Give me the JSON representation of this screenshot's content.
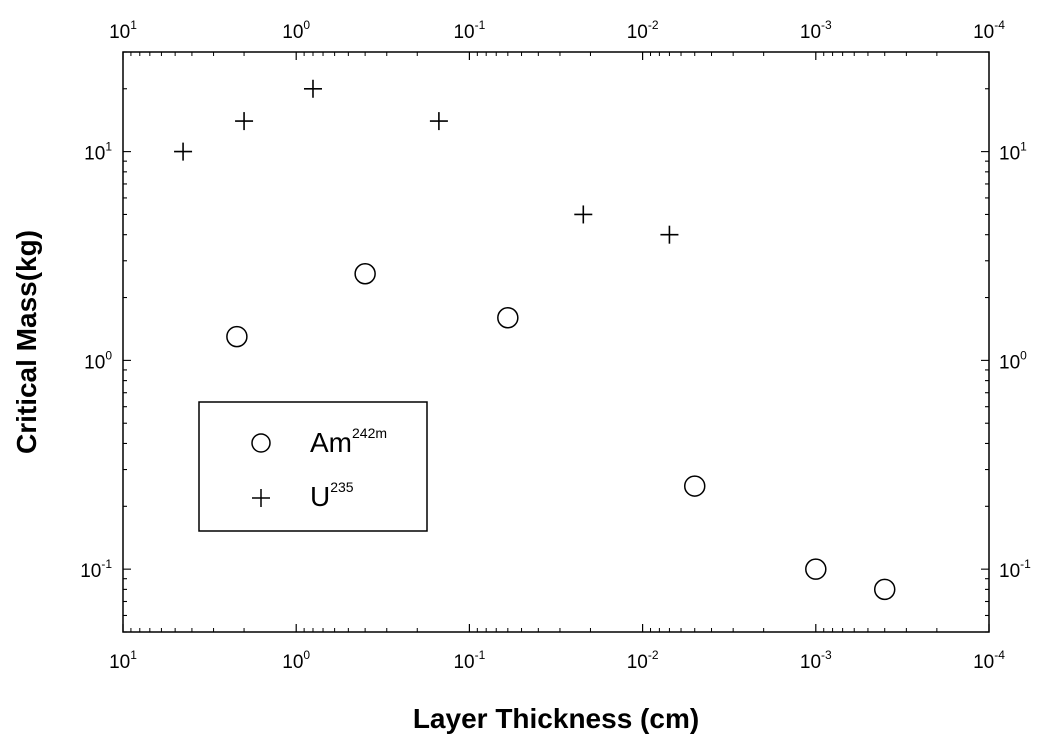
{
  "chart_data": {
    "type": "scatter",
    "title": "",
    "xlabel": "Layer Thickness (cm)",
    "ylabel": "Critical Mass(kg)",
    "x_scale": "log",
    "y_scale": "log",
    "x_reversed": true,
    "xlim": [
      10,
      0.0001
    ],
    "ylim": [
      0.05,
      30
    ],
    "x_ticks": [
      {
        "base": "10",
        "exp": "1"
      },
      {
        "base": "10",
        "exp": "0"
      },
      {
        "base": "10",
        "exp": "-1"
      },
      {
        "base": "10",
        "exp": "-2"
      },
      {
        "base": "10",
        "exp": "-3"
      },
      {
        "base": "10",
        "exp": "-4"
      }
    ],
    "y_ticks": [
      {
        "base": "10",
        "exp": "1"
      },
      {
        "base": "10",
        "exp": "0"
      },
      {
        "base": "10",
        "exp": "-1"
      }
    ],
    "grid": false,
    "legend": {
      "placement": "lower-left",
      "entries": [
        {
          "base": "Am",
          "sup": "242m",
          "marker": "circle"
        },
        {
          "base": "U",
          "sup": "235",
          "marker": "plus"
        }
      ]
    },
    "series": [
      {
        "name": "Am242m",
        "marker": "circle",
        "points": [
          {
            "x": 2.2,
            "y": 1.3
          },
          {
            "x": 0.4,
            "y": 2.6
          },
          {
            "x": 0.06,
            "y": 1.6
          },
          {
            "x": 0.005,
            "y": 0.25
          },
          {
            "x": 0.001,
            "y": 0.1
          },
          {
            "x": 0.0004,
            "y": 0.08
          }
        ]
      },
      {
        "name": "U235",
        "marker": "plus",
        "points": [
          {
            "x": 4.5,
            "y": 10
          },
          {
            "x": 2.0,
            "y": 14
          },
          {
            "x": 0.8,
            "y": 20
          },
          {
            "x": 0.15,
            "y": 14
          },
          {
            "x": 0.022,
            "y": 5
          },
          {
            "x": 0.007,
            "y": 4
          }
        ]
      }
    ]
  }
}
